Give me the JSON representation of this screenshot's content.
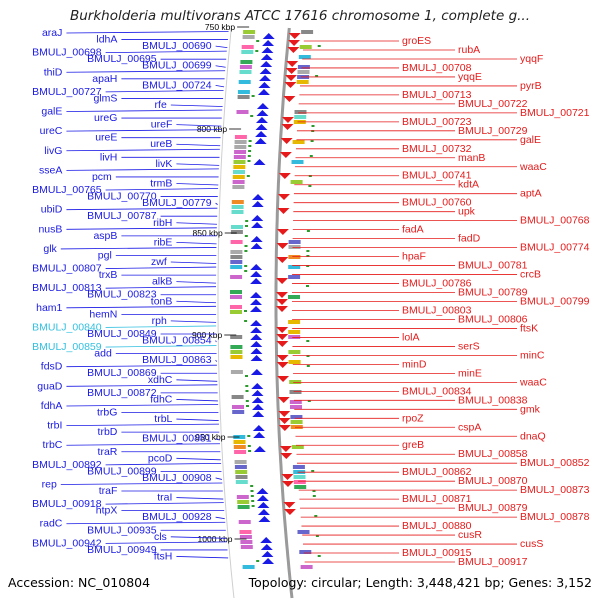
{
  "title": "Burkholderia multivorans ATCC 17616 chromosome 1, complete g...",
  "footer": {
    "accession": "Accession: NC_010804",
    "summary": "Topology: circular; Length: 3,448,421 bp; Genes: 3,152"
  },
  "colors": {
    "left_strand": "#1a1ae6",
    "right_strand": "#e61a1a",
    "highlight": "#33c0e0",
    "backbone": "#9a9a9a"
  },
  "kbp_marks": [
    "750 kbp",
    "800 kbp",
    "850 kbp",
    "900 kbp",
    "950 kbp",
    "1000 kbp"
  ],
  "left_labels": [
    "araJ",
    "ldhA",
    "BMULJ_00690",
    "BMULJ_00698",
    "BMULJ_00695",
    "BMULJ_00699",
    "thiD",
    "apaH",
    "BMULJ_00724",
    "BMULJ_00727",
    "glmS",
    "rfe",
    "galE",
    "ureG",
    "ureF",
    "ureC",
    "ureE",
    "ureB",
    "livG",
    "livH",
    "livK",
    "sseA",
    "pcm",
    "trmB",
    "BMULJ_00765",
    "BMULJ_00770",
    "BMULJ_00779",
    "ubiD",
    "BMULJ_00787",
    "ribH",
    "nusB",
    "aspB",
    "ribE",
    "glk",
    "pgl",
    "zwf",
    "BMULJ_00807",
    "trxB",
    "alkB",
    "BMULJ_00813",
    "BMULJ_00823",
    "tonB",
    "ham1",
    "hemN",
    "rph",
    "BMULJ_00840",
    "BMULJ_00849",
    "BMULJ_00854",
    "BMULJ_00859",
    "add",
    "BMULJ_00863",
    "fdsD",
    "BMULJ_00869",
    "xdhC",
    "guaD",
    "BMULJ_00872",
    "fdhC",
    "fdhA",
    "trbG",
    "trbL",
    "trbI",
    "trbD",
    "BMULJ_00881",
    "trbC",
    "traR",
    "pcoD",
    "BMULJ_00892",
    "BMULJ_00899",
    "BMULJ_00908",
    "rep",
    "traF",
    "traI",
    "BMULJ_00918",
    "htpX",
    "BMULJ_00928",
    "radC",
    "BMULJ_00935",
    "cls",
    "BMULJ_00942",
    "BMULJ_00949",
    "ftsH"
  ],
  "right_labels": [
    "groES",
    "rubA",
    "yqqF",
    "BMULJ_00708",
    "yqqE",
    "pyrB",
    "BMULJ_00713",
    "BMULJ_00722",
    "BMULJ_00721",
    "BMULJ_00723",
    "BMULJ_00729",
    "galE",
    "BMULJ_00732",
    "manB",
    "waaC",
    "BMULJ_00741",
    "kdtA",
    "aptA",
    "BMULJ_00760",
    "upk",
    "BMULJ_00768",
    "fadA",
    "fadD",
    "BMULJ_00774",
    "hpaF",
    "BMULJ_00781",
    "crcB",
    "BMULJ_00786",
    "BMULJ_00789",
    "BMULJ_00799",
    "BMULJ_00803",
    "BMULJ_00806",
    "ftsK",
    "lolA",
    "serS",
    "minC",
    "minD",
    "minE",
    "waaC",
    "BMULJ_00834",
    "BMULJ_00838",
    "gmk",
    "rpoZ",
    "cspA",
    "dnaQ",
    "greB",
    "BMULJ_00858",
    "BMULJ_00852",
    "BMULJ_00862",
    "BMULJ_00870",
    "BMULJ_00873",
    "BMULJ_00871",
    "BMULJ_00879",
    "BMULJ_00878",
    "BMULJ_00880",
    "cusR",
    "cusS",
    "BMULJ_00915",
    "BMULJ_00917"
  ]
}
